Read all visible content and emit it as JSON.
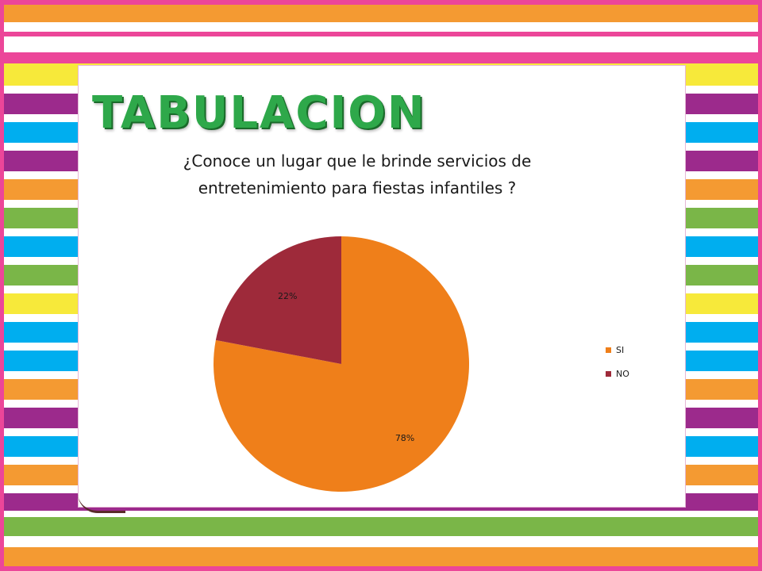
{
  "slide": {
    "title": "TABULACION",
    "background_stripe_colors": [
      "#f49a32",
      "#ec4699",
      "#f7e93a",
      "#9c2a8c",
      "#00aeef",
      "#7ab648",
      "#ffffff"
    ]
  },
  "chart_data": {
    "type": "pie",
    "title_lines": [
      "¿Conoce un lugar que le brinde servicios de",
      "entretenimiento para fiestas infantiles ?"
    ],
    "categories": [
      "SI",
      "NO"
    ],
    "values": [
      78,
      22
    ],
    "data_labels": [
      "78%",
      "22%"
    ],
    "colors": [
      "#ef7f1a",
      "#9e2a3a"
    ],
    "legend_position": "right"
  }
}
